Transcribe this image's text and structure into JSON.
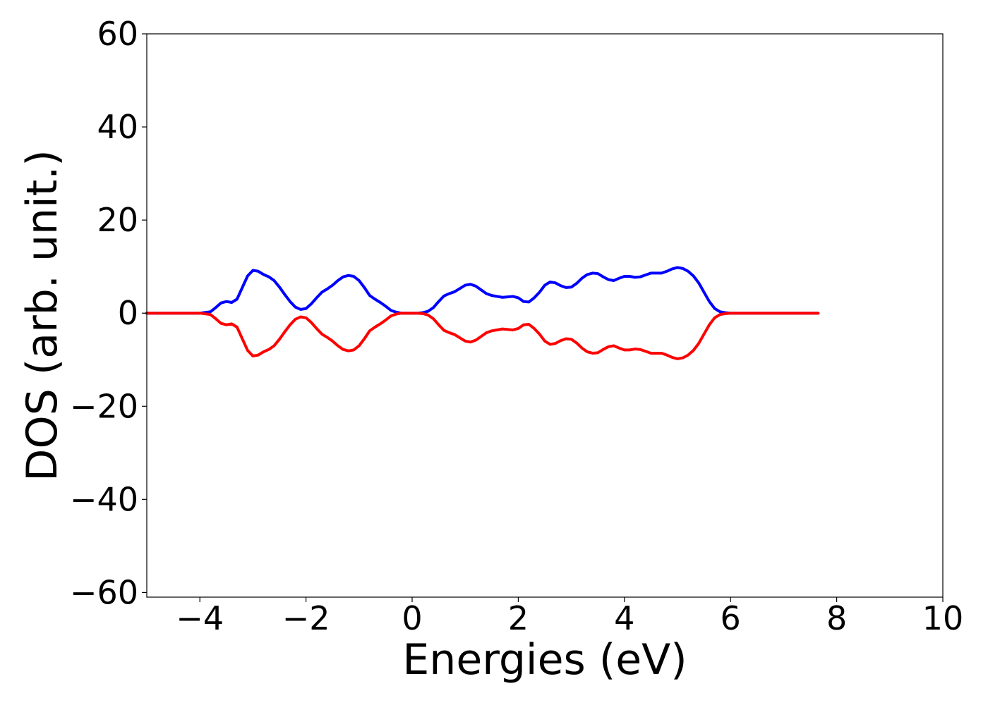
{
  "chart_data": {
    "type": "line",
    "title": "",
    "xlabel": "Energies (eV)",
    "ylabel": "DOS (arb. unit.)",
    "xlim": [
      -5,
      10
    ],
    "ylim": [
      -61,
      60
    ],
    "xticks": [
      -4,
      -2,
      0,
      2,
      4,
      6,
      8,
      10
    ],
    "xtick_labels": [
      "−4",
      "−2",
      "0",
      "2",
      "4",
      "6",
      "8",
      "10"
    ],
    "yticks": [
      60,
      40,
      20,
      0,
      -20,
      -40,
      -60
    ],
    "ytick_labels": [
      "60",
      "40",
      "20",
      "0",
      "−20",
      "−40",
      "−60"
    ],
    "grid": false,
    "legend": false,
    "colors": {
      "up": "#0000ff",
      "down": "#ff0000",
      "axes": "#000000"
    },
    "x": [
      -5.0,
      -4.2,
      -4.0,
      -3.8,
      -3.7,
      -3.6,
      -3.5,
      -3.4,
      -3.3,
      -3.2,
      -3.1,
      -3.0,
      -2.9,
      -2.8,
      -2.7,
      -2.6,
      -2.5,
      -2.4,
      -2.3,
      -2.2,
      -2.1,
      -2.0,
      -1.9,
      -1.8,
      -1.7,
      -1.6,
      -1.5,
      -1.4,
      -1.3,
      -1.2,
      -1.1,
      -1.0,
      -0.9,
      -0.8,
      -0.7,
      -0.6,
      -0.5,
      -0.4,
      -0.3,
      -0.2,
      -0.1,
      0.0,
      0.1,
      0.2,
      0.3,
      0.4,
      0.5,
      0.6,
      0.7,
      0.8,
      0.9,
      1.0,
      1.1,
      1.2,
      1.3,
      1.4,
      1.5,
      1.6,
      1.7,
      1.8,
      1.9,
      2.0,
      2.1,
      2.2,
      2.3,
      2.4,
      2.5,
      2.6,
      2.7,
      2.8,
      2.9,
      3.0,
      3.1,
      3.2,
      3.3,
      3.4,
      3.5,
      3.6,
      3.7,
      3.8,
      3.9,
      4.0,
      4.1,
      4.2,
      4.3,
      4.4,
      4.5,
      4.6,
      4.7,
      4.8,
      4.9,
      5.0,
      5.1,
      5.2,
      5.3,
      5.4,
      5.5,
      5.6,
      5.7,
      5.8,
      5.9,
      6.0,
      6.2,
      7.0,
      7.65
    ],
    "series": [
      {
        "values": [
          0,
          0,
          0,
          0.3,
          1.2,
          2.2,
          2.5,
          2.3,
          3.0,
          5.5,
          8.0,
          9.2,
          9.0,
          8.3,
          7.8,
          7.0,
          5.6,
          4.0,
          2.5,
          1.3,
          0.8,
          1.0,
          2.0,
          3.3,
          4.5,
          5.2,
          6.0,
          7.0,
          7.8,
          8.1,
          7.9,
          7.0,
          5.5,
          3.8,
          3.0,
          2.3,
          1.5,
          0.6,
          0.2,
          0.0,
          0.0,
          0.0,
          0.0,
          0.1,
          0.4,
          1.2,
          2.5,
          3.7,
          4.2,
          4.6,
          5.3,
          6.0,
          6.2,
          5.8,
          5.0,
          4.2,
          3.8,
          3.6,
          3.4,
          3.5,
          3.6,
          3.3,
          2.5,
          2.4,
          3.3,
          4.5,
          6.0,
          6.7,
          6.5,
          5.9,
          5.5,
          5.6,
          6.4,
          7.5,
          8.3,
          8.6,
          8.5,
          7.8,
          7.2,
          7.0,
          7.5,
          7.9,
          7.9,
          7.7,
          7.8,
          8.2,
          8.6,
          8.6,
          8.6,
          9.0,
          9.5,
          9.8,
          9.6,
          9.0,
          8.0,
          6.5,
          4.5,
          2.5,
          1.0,
          0.3,
          0.1,
          0,
          0,
          0,
          0
        ]
      },
      {
        "values": [
          0,
          0,
          0,
          -0.3,
          -1.2,
          -2.2,
          -2.5,
          -2.3,
          -3.0,
          -5.5,
          -8.0,
          -9.2,
          -9.0,
          -8.3,
          -7.8,
          -7.0,
          -5.6,
          -4.0,
          -2.5,
          -1.3,
          -0.8,
          -1.0,
          -2.0,
          -3.3,
          -4.5,
          -5.2,
          -6.0,
          -7.0,
          -7.8,
          -8.1,
          -7.9,
          -7.0,
          -5.5,
          -3.8,
          -3.0,
          -2.3,
          -1.5,
          -0.6,
          -0.2,
          0.0,
          0.0,
          0.0,
          0.0,
          -0.1,
          -0.4,
          -1.2,
          -2.5,
          -3.7,
          -4.2,
          -4.6,
          -5.3,
          -6.0,
          -6.2,
          -5.8,
          -5.0,
          -4.2,
          -3.8,
          -3.6,
          -3.4,
          -3.5,
          -3.6,
          -3.3,
          -2.5,
          -2.4,
          -3.3,
          -4.5,
          -6.0,
          -6.7,
          -6.5,
          -5.9,
          -5.5,
          -5.6,
          -6.4,
          -7.5,
          -8.3,
          -8.6,
          -8.5,
          -7.8,
          -7.2,
          -7.0,
          -7.5,
          -7.9,
          -7.9,
          -7.7,
          -7.8,
          -8.2,
          -8.6,
          -8.6,
          -8.6,
          -9.0,
          -9.5,
          -9.8,
          -9.6,
          -9.0,
          -8.0,
          -6.5,
          -4.5,
          -2.5,
          -1.0,
          -0.3,
          -0.1,
          0,
          0,
          0,
          0
        ]
      }
    ]
  }
}
